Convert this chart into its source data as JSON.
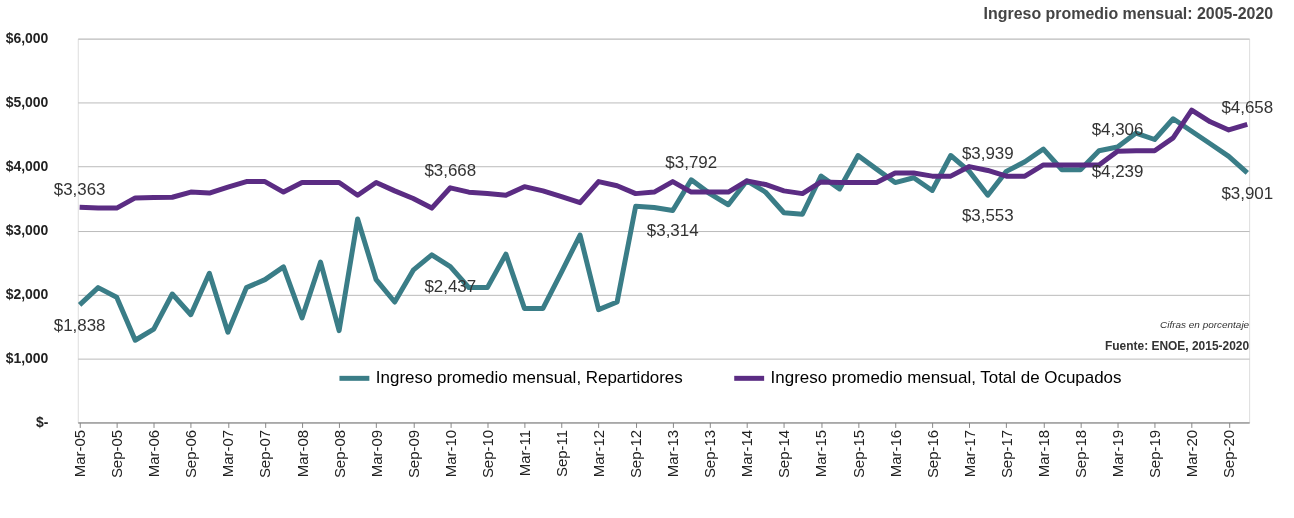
{
  "chart_data": {
    "type": "line",
    "title": "Ingreso promedio mensual: 2005-2020",
    "categories": [
      "Mar-05",
      null,
      "Sep-05",
      null,
      "Mar-06",
      null,
      "Sep-06",
      null,
      "Mar-07",
      null,
      "Sep-07",
      null,
      "Mar-08",
      null,
      "Sep-08",
      null,
      "Mar-09",
      null,
      "Sep-09",
      null,
      "Mar-10",
      null,
      "Sep-10",
      null,
      "Mar-11",
      null,
      "Sep-11",
      null,
      "Mar-12",
      null,
      "Sep-12",
      null,
      "Mar-13",
      null,
      "Sep-13",
      null,
      "Mar-14",
      null,
      "Sep-14",
      null,
      "Mar-15",
      null,
      "Sep-15",
      null,
      "Mar-16",
      null,
      "Sep-16",
      null,
      "Mar-17",
      null,
      "Sep-17",
      null,
      "Mar-18",
      null,
      "Sep-18",
      null,
      "Mar-19",
      null,
      "Sep-19",
      null,
      "Mar-20",
      null,
      "Sep-20",
      null
    ],
    "series": [
      {
        "name": "Ingreso promedio mensual, Repartidores",
        "color": "#3a7d87",
        "values": [
          1838,
          2108,
          1958,
          1285,
          1460,
          2008,
          1684,
          2332,
          1410,
          2108,
          2232,
          2432,
          1634,
          2507,
          1435,
          3180,
          2232,
          1883,
          2381,
          2620,
          2437,
          2108,
          2108,
          2631,
          1783,
          1783,
          2350,
          2930,
          1764,
          1883,
          3378,
          3360,
          3314,
          3792,
          3577,
          3403,
          3777,
          3602,
          3278,
          3254,
          3852,
          3650,
          4173,
          3960,
          3750,
          3825,
          3626,
          4173,
          3925,
          3553,
          3925,
          4075,
          4274,
          3950,
          3950,
          4248,
          4306,
          4523,
          4423,
          4748,
          4552,
          4356,
          4160,
          3901
        ],
        "value_labels": [
          "$1,838",
          null,
          null,
          null,
          null,
          null,
          null,
          null,
          null,
          null,
          null,
          null,
          null,
          null,
          null,
          null,
          null,
          null,
          null,
          null,
          "$2,437",
          null,
          null,
          null,
          null,
          null,
          null,
          null,
          null,
          null,
          null,
          null,
          "$3,314",
          "$3,792",
          null,
          null,
          null,
          null,
          null,
          null,
          null,
          null,
          null,
          null,
          null,
          null,
          null,
          null,
          null,
          "$3,553",
          null,
          null,
          null,
          null,
          null,
          null,
          "$4,306",
          null,
          null,
          null,
          null,
          null,
          null,
          "$3,901"
        ]
      },
      {
        "name": "Ingreso promedio mensual, Total de Ocupados",
        "color": "#5b2c83",
        "values": [
          3363,
          3351,
          3351,
          3510,
          3515,
          3520,
          3601,
          3586,
          3680,
          3765,
          3765,
          3601,
          3750,
          3750,
          3750,
          3552,
          3750,
          3620,
          3500,
          3351,
          3668,
          3600,
          3580,
          3552,
          3686,
          3620,
          3530,
          3436,
          3765,
          3700,
          3577,
          3601,
          3765,
          3601,
          3601,
          3601,
          3776,
          3720,
          3620,
          3577,
          3760,
          3750,
          3750,
          3750,
          3900,
          3900,
          3850,
          3850,
          4000,
          3939,
          3850,
          3850,
          4025,
          4025,
          4025,
          4025,
          4239,
          4248,
          4248,
          4448,
          4882,
          4700,
          4572,
          4658
        ],
        "value_labels": [
          "$3,363",
          null,
          null,
          null,
          null,
          null,
          null,
          null,
          null,
          null,
          null,
          null,
          null,
          null,
          null,
          null,
          null,
          null,
          null,
          null,
          "$3,668",
          null,
          null,
          null,
          null,
          null,
          null,
          null,
          null,
          null,
          null,
          null,
          null,
          null,
          null,
          null,
          null,
          null,
          null,
          null,
          null,
          null,
          null,
          null,
          null,
          null,
          null,
          null,
          null,
          "$3,939",
          null,
          null,
          null,
          null,
          null,
          null,
          "$4,239",
          null,
          null,
          null,
          null,
          null,
          null,
          "$4,658"
        ]
      }
    ],
    "ylim": [
      0,
      6000
    ],
    "yticks": [
      {
        "value": 0,
        "label": "$-"
      },
      {
        "value": 1000,
        "label": "$1,000"
      },
      {
        "value": 2000,
        "label": "$2,000"
      },
      {
        "value": 3000,
        "label": "$3,000"
      },
      {
        "value": 4000,
        "label": "$4,000"
      },
      {
        "value": 5000,
        "label": "$5,000"
      },
      {
        "value": 6000,
        "label": "$6,000"
      }
    ],
    "grid": "y",
    "legend": "bottom",
    "marker": "none",
    "line_style": "solid",
    "annotations": [
      "Cifras en porcentaje",
      "Fuente: ENOE, 2015-2020"
    ]
  }
}
